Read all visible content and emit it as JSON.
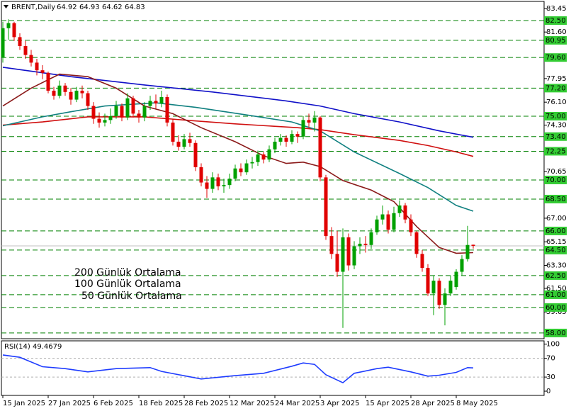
{
  "chart_data": [
    {
      "type": "candlestick",
      "title": "BRENT,Daily",
      "categories": [
        "15 Jan 2025",
        null,
        null,
        null,
        null,
        null,
        null,
        null,
        "27 Jan 2025",
        null,
        null,
        null,
        null,
        null,
        null,
        null,
        "6 Feb 2025",
        null,
        null,
        null,
        null,
        null,
        null,
        null,
        "18 Feb 2025",
        null,
        null,
        null,
        null,
        null,
        null,
        null,
        "28 Feb 2025",
        null,
        null,
        null,
        null,
        null,
        null,
        null,
        "12 Mar 2025",
        null,
        null,
        null,
        null,
        null,
        null,
        null,
        "24 Mar 2025",
        null,
        null,
        null,
        null,
        null,
        null,
        null,
        "3 Apr 2025",
        null,
        null,
        null,
        null,
        null,
        null,
        null,
        "15 Apr 2025",
        null,
        null,
        null,
        null,
        null,
        null,
        null,
        "28 Apr 2025",
        null,
        null,
        null,
        null,
        null,
        null,
        null,
        "8 May 2025",
        null,
        null,
        null
      ],
      "open": [
        79.6,
        81.9,
        82.3,
        81.2,
        80.5,
        79.8,
        79.2,
        78.6,
        78.4,
        77.0,
        76.6,
        77.4,
        76.9,
        76.3,
        77.0,
        76.8,
        75.8,
        74.8,
        74.5,
        74.7,
        75.0,
        75.8,
        74.9,
        76.4,
        75.2,
        74.9,
        75.8,
        76.2,
        76.0,
        76.5,
        74.5,
        73.0,
        72.6,
        73.2,
        72.9,
        71.0,
        69.8,
        69.3,
        70.2,
        69.5,
        69.6,
        70.1,
        70.9,
        70.6,
        71.3,
        71.4,
        72.0,
        71.6,
        72.4,
        73.0,
        73.3,
        73.0,
        73.6,
        73.4,
        74.7,
        74.5,
        74.9,
        70.2,
        65.6,
        64.2,
        62.8,
        65.5,
        63.3,
        64.8,
        65.0,
        64.9,
        65.9,
        66.9,
        67.3,
        66.1,
        67.4,
        68.0,
        66.9,
        65.9,
        64.2,
        63.1,
        61.1,
        62.1,
        60.2,
        61.1,
        61.6,
        62.8,
        63.8,
        64.92
      ],
      "high": [
        82.4,
        82.6,
        82.4,
        81.5,
        80.9,
        80.2,
        79.5,
        79.0,
        78.5,
        77.3,
        77.8,
        77.6,
        77.2,
        77.3,
        77.4,
        77.0,
        76.1,
        75.3,
        75.2,
        75.6,
        76.2,
        76.0,
        76.8,
        76.6,
        75.5,
        76.1,
        76.6,
        76.7,
        77.0,
        76.7,
        74.8,
        73.5,
        73.6,
        73.7,
        73.1,
        71.3,
        70.3,
        70.6,
        70.5,
        70.1,
        70.5,
        71.2,
        71.3,
        71.6,
        71.8,
        72.3,
        72.2,
        72.7,
        73.3,
        73.6,
        73.5,
        73.9,
        73.8,
        75.0,
        75.2,
        75.4,
        75.0,
        70.4,
        66.3,
        66.0,
        66.2,
        65.8,
        65.2,
        65.5,
        65.6,
        66.2,
        67.2,
        68.0,
        67.6,
        67.9,
        68.4,
        68.2,
        67.3,
        66.0,
        64.5,
        63.4,
        62.5,
        62.3,
        61.5,
        62.5,
        63.0,
        64.1,
        66.4,
        64.93
      ],
      "low": [
        79.2,
        81.0,
        80.9,
        80.2,
        79.5,
        78.9,
        78.2,
        77.9,
        76.8,
        76.3,
        76.4,
        76.6,
        75.9,
        76.1,
        76.4,
        75.5,
        74.4,
        74.1,
        74.2,
        74.4,
        74.8,
        74.6,
        74.7,
        74.9,
        74.5,
        74.6,
        75.5,
        75.6,
        75.7,
        74.2,
        72.7,
        72.3,
        72.4,
        72.6,
        70.7,
        69.5,
        68.6,
        69.0,
        69.2,
        69.0,
        69.3,
        69.9,
        70.3,
        70.4,
        70.9,
        71.1,
        71.3,
        71.4,
        72.1,
        72.7,
        72.6,
        72.8,
        72.9,
        73.2,
        74.1,
        73.8,
        69.9,
        65.3,
        63.8,
        62.4,
        58.4,
        62.9,
        63.0,
        64.2,
        64.3,
        64.6,
        65.7,
        66.5,
        65.8,
        65.9,
        67.1,
        66.6,
        65.6,
        63.9,
        62.8,
        60.9,
        59.4,
        59.9,
        58.6,
        60.9,
        61.4,
        62.5,
        63.6,
        64.62
      ],
      "close": [
        81.9,
        82.3,
        81.2,
        80.5,
        79.8,
        79.2,
        78.6,
        78.4,
        77.0,
        76.6,
        77.4,
        76.9,
        76.3,
        77.0,
        76.8,
        75.8,
        74.8,
        74.5,
        74.7,
        75.0,
        75.8,
        74.9,
        76.4,
        75.2,
        74.9,
        75.8,
        76.2,
        76.0,
        76.5,
        74.5,
        73.0,
        72.6,
        73.2,
        72.9,
        71.0,
        69.8,
        69.3,
        70.2,
        69.5,
        69.6,
        70.1,
        70.9,
        70.6,
        71.3,
        71.4,
        72.0,
        71.6,
        72.4,
        73.0,
        73.3,
        73.0,
        73.6,
        73.4,
        74.7,
        74.5,
        74.9,
        70.2,
        65.6,
        64.2,
        62.8,
        65.5,
        63.3,
        64.8,
        65.0,
        64.9,
        65.9,
        66.9,
        67.3,
        66.1,
        67.4,
        68.0,
        66.9,
        65.9,
        64.2,
        63.1,
        61.1,
        62.1,
        60.2,
        61.1,
        62.1,
        62.8,
        63.8,
        64.9,
        64.83
      ],
      "up_color": "#00a000",
      "down_color": "#e00000",
      "price_line_color": "#c0c0c0",
      "ylim": [
        57.55,
        84.0
      ],
      "yticks": [
        83.45,
        {
          "value": 81.6,
          "label": "81.60"
        },
        77.95,
        {
          "value": 76.1,
          "label": "76.10"
        },
        {
          "value": 74.3,
          "label": "74.30"
        },
        70.65,
        {
          "value": 67.0,
          "label": "67.00"
        },
        65.15,
        {
          "value": 63.3,
          "label": "63.30"
        },
        {
          "value": 61.5,
          "label": "61.50"
        },
        59.65
      ],
      "levels": [
        {
          "value": 82.5,
          "label": "82.50"
        },
        {
          "value": 80.95,
          "label": "80.95"
        },
        {
          "value": 79.6,
          "label": "79.60"
        },
        {
          "value": 77.2,
          "label": "77.20"
        },
        {
          "value": 75.0,
          "label": "75.00"
        },
        {
          "value": 73.4,
          "label": "73.40"
        },
        {
          "value": 72.25,
          "label": "72.25"
        },
        {
          "value": 70.0,
          "label": "70.00"
        },
        {
          "value": 68.5,
          "label": "68.50"
        },
        {
          "value": 66.0,
          "label": "66.00"
        },
        {
          "value": 64.5,
          "label": "64.50"
        },
        {
          "value": 62.5,
          "label": "62.50"
        },
        {
          "value": 61.0,
          "label": "61.00"
        },
        {
          "value": 60.0,
          "label": "60.00"
        },
        {
          "value": 58.0,
          "label": "58.00"
        }
      ],
      "level_color": "#008000",
      "level_label_color": "#33cc33",
      "series": [
        {
          "name": "200 Günlük Ortalama",
          "color": "#1010c8",
          "x": [
            0,
            12,
            25,
            37,
            50,
            56,
            62,
            70,
            77,
            83
          ],
          "values": [
            78.84,
            78.1,
            77.45,
            76.9,
            76.2,
            75.8,
            75.2,
            74.55,
            73.85,
            73.35
          ]
        },
        {
          "name": "100 Günlük Ortalama",
          "color": "#d01010",
          "x": [
            0,
            7,
            15,
            25,
            32,
            41,
            52,
            56,
            62,
            70,
            75,
            80,
            83
          ],
          "values": [
            74.3,
            74.55,
            74.95,
            74.95,
            74.7,
            74.4,
            74.1,
            73.95,
            73.55,
            73.1,
            72.7,
            72.2,
            71.85
          ]
        },
        {
          "name": "50 Günlük Ortalama",
          "color": "#108080",
          "x": [
            0,
            7,
            12,
            18,
            27,
            34,
            43,
            51,
            56,
            62,
            70,
            75,
            80,
            83
          ],
          "values": [
            74.25,
            74.95,
            75.35,
            75.8,
            76.05,
            75.7,
            75.1,
            74.55,
            73.85,
            72.2,
            70.5,
            69.4,
            68.0,
            67.55
          ]
        },
        {
          "color": "#8b1a1a",
          "x": [
            0,
            5,
            10,
            15,
            20,
            25,
            30,
            35,
            41,
            46,
            50,
            53,
            56,
            60,
            65,
            69,
            73,
            77,
            80,
            83
          ],
          "values": [
            75.8,
            77.2,
            78.3,
            78.1,
            77.2,
            75.8,
            75.2,
            74.1,
            73.0,
            71.9,
            71.3,
            71.4,
            71.05,
            69.95,
            69.2,
            68.3,
            66.35,
            64.7,
            64.25,
            64.3
          ]
        }
      ]
    },
    {
      "type": "line",
      "title": "RSI(14)",
      "color": "#1e3cff",
      "x": [
        0,
        3,
        7,
        11,
        15,
        20,
        26,
        28,
        35,
        41,
        46,
        51,
        53,
        55,
        57,
        60,
        62,
        66,
        68,
        72,
        75,
        77,
        80,
        82,
        83
      ],
      "values": [
        77,
        72,
        52,
        48,
        41,
        48,
        50,
        42,
        26,
        33,
        38,
        53,
        60,
        57,
        35,
        18,
        38,
        48,
        51,
        41,
        32,
        34,
        40,
        50,
        49.4679
      ],
      "ylim": [
        -9,
        107
      ],
      "yticks": [
        100,
        70,
        30,
        0
      ],
      "levels": [
        70,
        30
      ],
      "level_color": "#b0b0b0"
    }
  ]
}
